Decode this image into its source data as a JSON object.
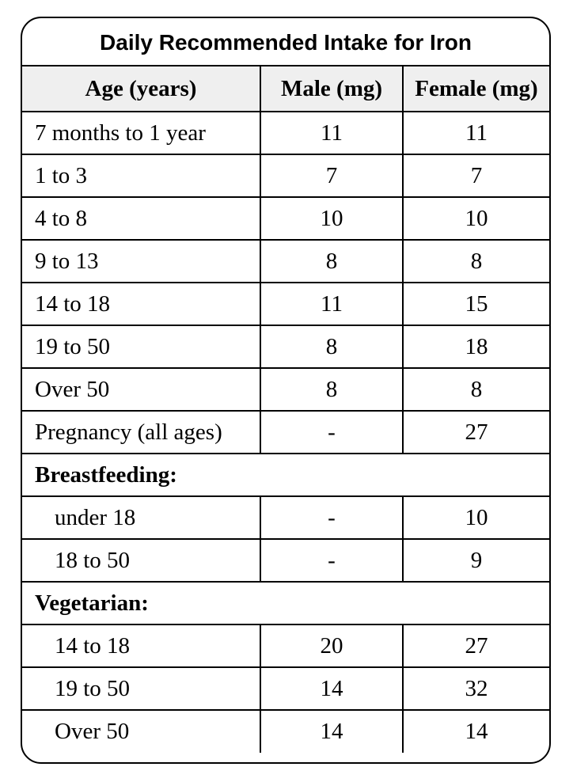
{
  "title": "Daily Recommended Intake for Iron",
  "columns": [
    "Age (years)",
    "Male (mg)",
    "Female (mg)"
  ],
  "rows": [
    {
      "age": "7 months to 1 year",
      "male": "11",
      "female": "11"
    },
    {
      "age": "1 to 3",
      "male": "7",
      "female": "7"
    },
    {
      "age": "4 to 8",
      "male": "10",
      "female": "10"
    },
    {
      "age": "9 to 13",
      "male": "8",
      "female": "8"
    },
    {
      "age": "14 to 18",
      "male": "11",
      "female": "15"
    },
    {
      "age": "19 to 50",
      "male": "8",
      "female": "18"
    },
    {
      "age": "Over 50",
      "male": "8",
      "female": "8"
    },
    {
      "age": "Pregnancy (all ages)",
      "male": "-",
      "female": "27"
    }
  ],
  "breastfeeding": {
    "label": "Breastfeeding:",
    "rows": [
      {
        "age": "under 18",
        "male": "-",
        "female": "10"
      },
      {
        "age": "18 to 50",
        "male": "-",
        "female": "9"
      }
    ]
  },
  "vegetarian": {
    "label": "Vegetarian:",
    "rows": [
      {
        "age": "14 to 18",
        "male": "20",
        "female": "27"
      },
      {
        "age": "19 to 50",
        "male": "14",
        "female": "32"
      },
      {
        "age": "Over 50",
        "male": "14",
        "female": "14"
      }
    ]
  }
}
